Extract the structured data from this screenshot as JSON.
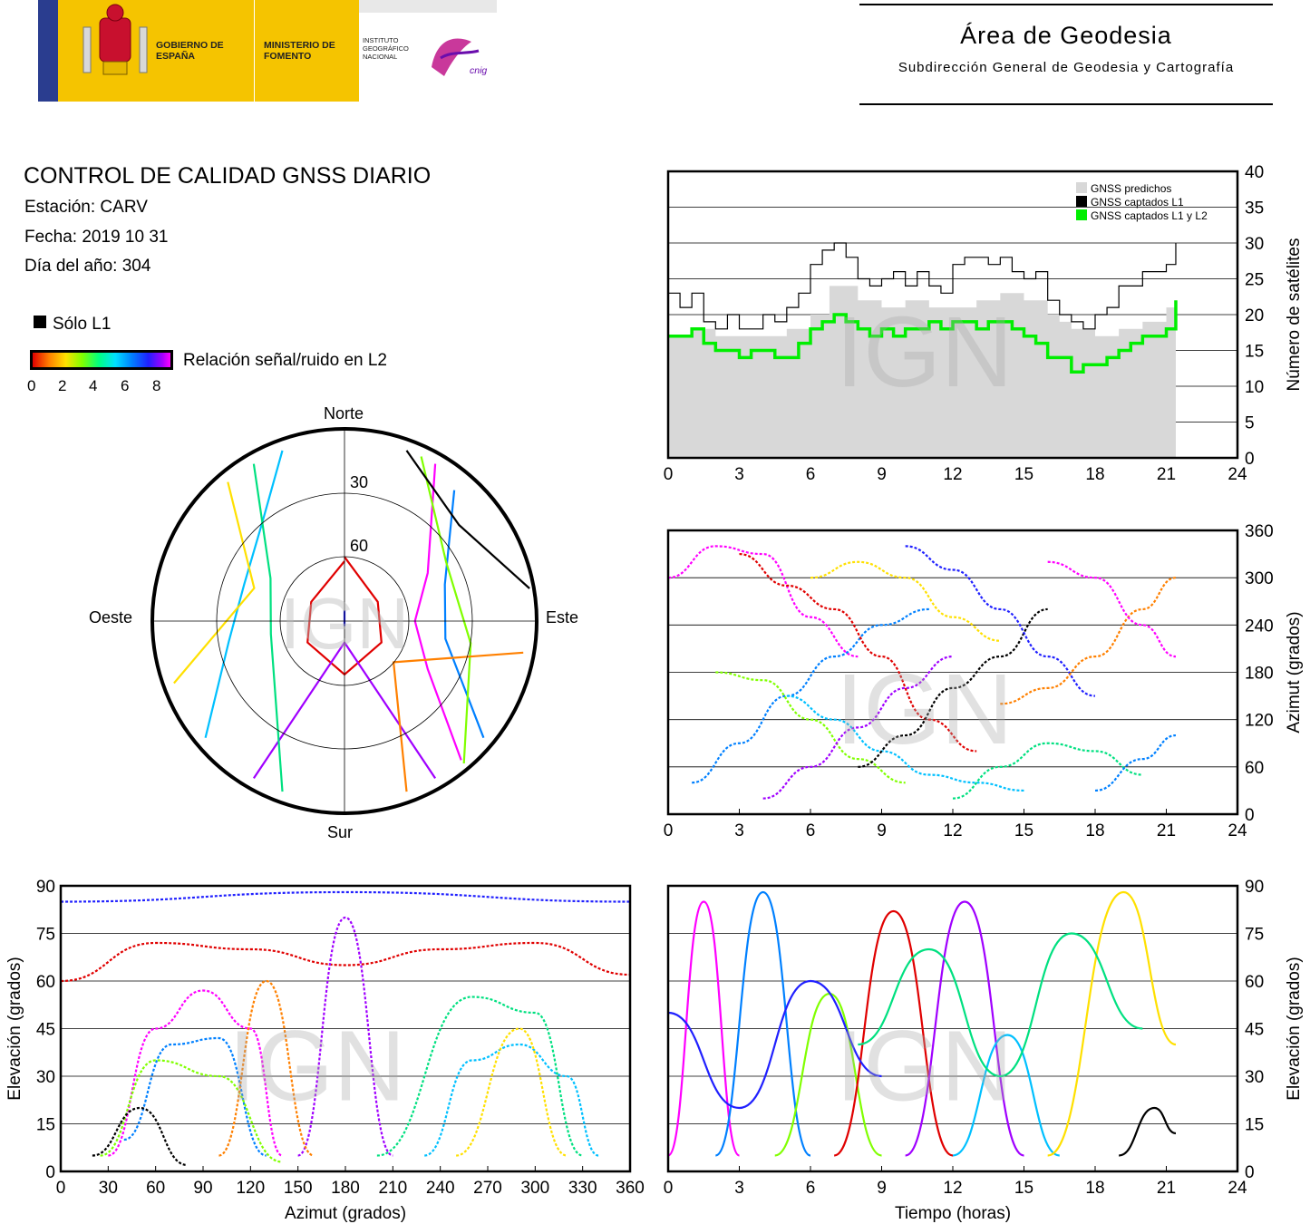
{
  "header": {
    "gobierno": "GOBIERNO DE ESPAÑA",
    "ministerio": "MINISTERIO DE FOMENTO",
    "instituto": "INSTITUTO GEOGRÁFICO NACIONAL",
    "cnig": "cnig",
    "area_title": "Área de Geodesia",
    "area_subtitle": "Subdirección General de Geodesia y Cartografía"
  },
  "report": {
    "title": "CONTROL DE CALIDAD GNSS DIARIO",
    "station": "Estación: CARV",
    "date": "Fecha: 2019 10 31",
    "doy": "Día del año: 304",
    "legend_l1_only": "Sólo L1",
    "legend_snr": "Relación señal/ruido en L2",
    "snr_ticks": [
      "0",
      "2",
      "4",
      "6",
      "8"
    ]
  },
  "watermark": "IGN",
  "polar": {
    "north": "Norte",
    "south": "Sur",
    "east": "Este",
    "west": "Oeste",
    "ring_labels": [
      "30",
      "60"
    ]
  },
  "colors": {
    "predicted": "#d8d8d8",
    "l1": "#000000",
    "l1l2": "#00ee00",
    "grid": "#000000"
  },
  "chart_data": [
    {
      "id": "sat-count",
      "type": "line",
      "ylabel": "Número de satélites",
      "xlim": [
        0,
        24
      ],
      "ylim": [
        0,
        40
      ],
      "xticks": [
        "0",
        "3",
        "6",
        "9",
        "12",
        "15",
        "18",
        "21",
        "24"
      ],
      "yticks": [
        "0",
        "5",
        "10",
        "15",
        "20",
        "25",
        "30",
        "35",
        "40"
      ],
      "legend": [
        "GNSS predichos",
        "GNSS captados L1",
        "GNSS captados L1 y L2"
      ],
      "legend_position": "top-right",
      "grid": "horizontal",
      "series": [
        {
          "name": "GNSS predichos",
          "type": "area",
          "x": [
            0,
            1,
            2,
            3,
            4,
            5,
            6,
            6.8,
            7.5,
            8,
            9,
            10,
            11,
            12,
            13,
            14,
            15,
            16,
            16.5,
            17,
            18,
            19,
            20,
            21,
            21.4
          ],
          "values": [
            17,
            18,
            17,
            17,
            17,
            18,
            20,
            24,
            24,
            22,
            21,
            22,
            21,
            21,
            22,
            23,
            22,
            20,
            19,
            18,
            17,
            18,
            19,
            21,
            22
          ]
        },
        {
          "name": "GNSS captados L1",
          "x": [
            0,
            0.5,
            1,
            1.5,
            2,
            2.5,
            3,
            3.5,
            4,
            4.5,
            5,
            5.5,
            6,
            6.5,
            7,
            7.5,
            8,
            8.5,
            9,
            9.5,
            10,
            10.5,
            11,
            11.5,
            12,
            12.5,
            13,
            13.5,
            14,
            14.5,
            15,
            15.5,
            16,
            16.5,
            17,
            17.5,
            18,
            18.5,
            19,
            19.5,
            20,
            20.5,
            21,
            21.4
          ],
          "values": [
            23,
            21,
            23,
            19,
            18,
            20,
            18,
            18,
            20,
            19,
            21,
            23,
            27,
            29,
            30,
            28,
            25,
            24,
            25,
            26,
            24,
            26,
            24,
            23,
            27,
            28,
            28,
            27,
            28,
            26,
            25,
            26,
            22,
            20,
            19,
            18,
            20,
            21,
            24,
            24,
            26,
            26,
            27,
            30
          ]
        },
        {
          "name": "GNSS captados L1 y L2",
          "x": [
            0,
            0.5,
            1,
            1.5,
            2,
            2.5,
            3,
            3.5,
            4,
            4.5,
            5,
            5.5,
            6,
            6.5,
            7,
            7.5,
            8,
            8.5,
            9,
            9.5,
            10,
            10.5,
            11,
            11.5,
            12,
            12.5,
            13,
            13.5,
            14,
            14.5,
            15,
            15.5,
            16,
            16.5,
            17,
            17.5,
            18,
            18.5,
            19,
            19.5,
            20,
            20.5,
            21,
            21.4
          ],
          "values": [
            17,
            17,
            18,
            16,
            15,
            15,
            14,
            15,
            15,
            14,
            14,
            16,
            18,
            19,
            20,
            19,
            18,
            17,
            18,
            17,
            18,
            18,
            19,
            18,
            19,
            19,
            18,
            19,
            19,
            18,
            17,
            16,
            14,
            14,
            12,
            13,
            13,
            14,
            15,
            16,
            17,
            17,
            18,
            22
          ]
        }
      ]
    },
    {
      "id": "azimuth-time",
      "type": "scatter",
      "ylabel": "Azimut (grados)",
      "xlim": [
        0,
        24
      ],
      "ylim": [
        0,
        360
      ],
      "xticks": [
        "0",
        "3",
        "6",
        "9",
        "12",
        "15",
        "18",
        "21",
        "24"
      ],
      "yticks": [
        "0",
        "60",
        "120",
        "180",
        "240",
        "300",
        "360"
      ],
      "grid": "horizontal",
      "series": [
        {
          "name": "",
          "x": [
            0,
            2,
            4,
            6,
            8
          ],
          "values": [
            300,
            340,
            330,
            250,
            200
          ]
        },
        {
          "name": "",
          "x": [
            1,
            3,
            5,
            7,
            9,
            11
          ],
          "values": [
            40,
            90,
            150,
            200,
            240,
            260
          ]
        },
        {
          "name": "",
          "x": [
            2,
            4,
            6,
            8,
            10
          ],
          "values": [
            180,
            170,
            120,
            70,
            40
          ]
        },
        {
          "name": "",
          "x": [
            3,
            5,
            7,
            9,
            11,
            13
          ],
          "values": [
            330,
            290,
            260,
            200,
            120,
            80
          ]
        },
        {
          "name": "",
          "x": [
            4,
            6,
            8,
            10,
            12
          ],
          "values": [
            20,
            60,
            110,
            160,
            200
          ]
        },
        {
          "name": "",
          "x": [
            5,
            7,
            9,
            11,
            13,
            15
          ],
          "values": [
            150,
            120,
            80,
            50,
            40,
            30
          ]
        },
        {
          "name": "",
          "x": [
            6,
            8,
            10,
            12,
            14
          ],
          "values": [
            300,
            320,
            300,
            250,
            220
          ]
        },
        {
          "name": "",
          "x": [
            8,
            10,
            12,
            14,
            16
          ],
          "values": [
            60,
            100,
            160,
            200,
            260
          ]
        },
        {
          "name": "",
          "x": [
            10,
            12,
            14,
            16,
            18
          ],
          "values": [
            340,
            310,
            260,
            200,
            150
          ]
        },
        {
          "name": "",
          "x": [
            12,
            14,
            16,
            18,
            20
          ],
          "values": [
            20,
            60,
            90,
            80,
            50
          ]
        },
        {
          "name": "",
          "x": [
            14,
            16,
            18,
            20,
            21.4
          ],
          "values": [
            140,
            160,
            200,
            260,
            300
          ]
        },
        {
          "name": "",
          "x": [
            16,
            18,
            20,
            21.4
          ],
          "values": [
            320,
            300,
            240,
            200
          ]
        },
        {
          "name": "",
          "x": [
            18,
            20,
            21.4
          ],
          "values": [
            30,
            70,
            100
          ]
        }
      ]
    },
    {
      "id": "elev-azimuth",
      "type": "scatter",
      "xlabel": "Azimut (grados)",
      "ylabel": "Elevación (grados)",
      "xlim": [
        0,
        360
      ],
      "ylim": [
        0,
        90
      ],
      "xticks": [
        "0",
        "30",
        "60",
        "90",
        "120",
        "150",
        "180",
        "210",
        "240",
        "270",
        "300",
        "330",
        "360"
      ],
      "yticks": [
        "0",
        "15",
        "30",
        "45",
        "60",
        "75",
        "90"
      ],
      "grid": "horizontal",
      "series": [
        {
          "name": "",
          "x": [
            30,
            60,
            90,
            120,
            140
          ],
          "values": [
            5,
            45,
            57,
            45,
            5
          ]
        },
        {
          "name": "",
          "x": [
            40,
            70,
            100,
            130
          ],
          "values": [
            10,
            40,
            42,
            5
          ]
        },
        {
          "name": "",
          "x": [
            25,
            60,
            100,
            140
          ],
          "values": [
            5,
            35,
            30,
            3
          ]
        },
        {
          "name": "",
          "x": [
            0,
            60,
            120,
            180,
            240,
            300,
            360
          ],
          "values": [
            60,
            72,
            70,
            65,
            70,
            72,
            62
          ]
        },
        {
          "name": "",
          "x": [
            150,
            180,
            210
          ],
          "values": [
            5,
            80,
            5
          ]
        },
        {
          "name": "",
          "x": [
            230,
            260,
            290,
            320,
            340
          ],
          "values": [
            5,
            35,
            40,
            30,
            5
          ]
        },
        {
          "name": "",
          "x": [
            250,
            290,
            320
          ],
          "values": [
            5,
            45,
            5
          ]
        },
        {
          "name": "",
          "x": [
            20,
            50,
            80
          ],
          "values": [
            5,
            20,
            2
          ]
        },
        {
          "name": "",
          "x": [
            0,
            180,
            360
          ],
          "values": [
            85,
            88,
            85
          ]
        },
        {
          "name": "",
          "x": [
            200,
            260,
            300,
            330
          ],
          "values": [
            5,
            55,
            50,
            5
          ]
        },
        {
          "name": "",
          "x": [
            100,
            130,
            160
          ],
          "values": [
            5,
            60,
            5
          ]
        }
      ]
    },
    {
      "id": "elev-time",
      "type": "line",
      "xlabel": "Tiempo (horas)",
      "ylabel": "Elevación (grados)",
      "xlim": [
        0,
        24
      ],
      "ylim": [
        0,
        90
      ],
      "xticks": [
        "0",
        "3",
        "6",
        "9",
        "12",
        "15",
        "18",
        "21",
        "24"
      ],
      "yticks": [
        "0",
        "15",
        "30",
        "45",
        "60",
        "75",
        "90"
      ],
      "grid": "horizontal",
      "series": [
        {
          "name": "",
          "x": [
            0,
            1.5,
            3
          ],
          "values": [
            5,
            85,
            5
          ]
        },
        {
          "name": "",
          "x": [
            2,
            4,
            6
          ],
          "values": [
            5,
            88,
            5
          ]
        },
        {
          "name": "",
          "x": [
            4.5,
            6.8,
            9
          ],
          "values": [
            5,
            56,
            5
          ]
        },
        {
          "name": "",
          "x": [
            7,
            9.5,
            12
          ],
          "values": [
            5,
            82,
            5
          ]
        },
        {
          "name": "",
          "x": [
            10,
            12.5,
            15
          ],
          "values": [
            5,
            85,
            5
          ]
        },
        {
          "name": "",
          "x": [
            12,
            14.3,
            16.5
          ],
          "values": [
            5,
            43,
            5
          ]
        },
        {
          "name": "",
          "x": [
            16,
            19.2,
            21.4
          ],
          "values": [
            5,
            88,
            40
          ]
        },
        {
          "name": "",
          "x": [
            19,
            20.5,
            21.4
          ],
          "values": [
            5,
            20,
            12
          ]
        },
        {
          "name": "",
          "x": [
            0,
            3,
            6,
            9
          ],
          "values": [
            50,
            20,
            60,
            30
          ]
        },
        {
          "name": "",
          "x": [
            8,
            11,
            14,
            17,
            20
          ],
          "values": [
            40,
            70,
            30,
            75,
            45
          ]
        }
      ]
    }
  ]
}
